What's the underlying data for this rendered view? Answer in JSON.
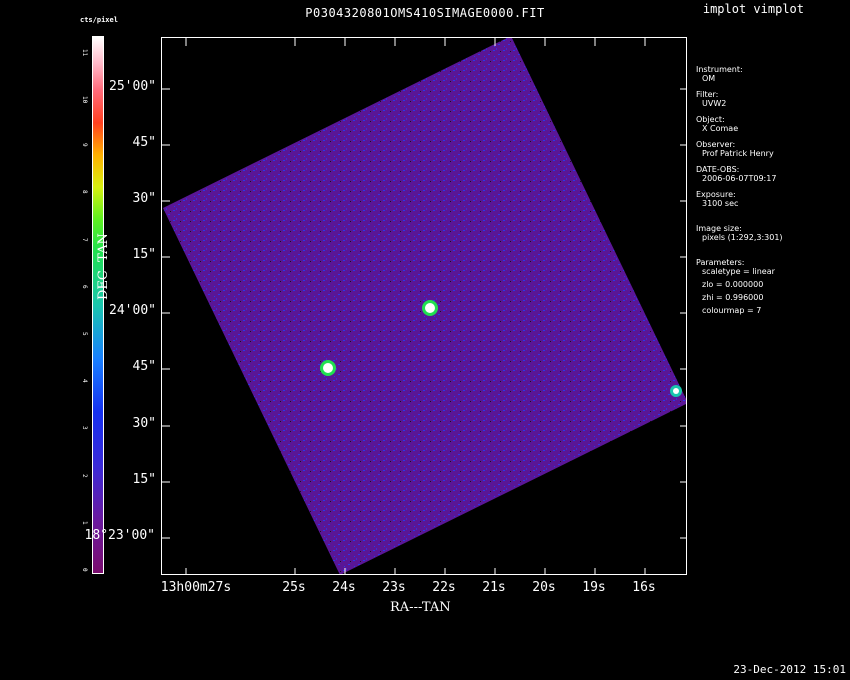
{
  "header": {
    "title": "P0304320801OMS410SIMAGE0000.FIT",
    "program": "implot vimplot",
    "timestamp": "23-Dec-2012 15:01"
  },
  "colorbar": {
    "label": "cts/pixel",
    "ticks": [
      "0",
      "1",
      "2",
      "3",
      "4",
      "5",
      "6",
      "7",
      "8",
      "9",
      "10",
      "11"
    ]
  },
  "axes": {
    "ylabel": "DEC--TAN",
    "xlabel": "RA---TAN",
    "yticks": [
      "25'00\"",
      "45\"",
      "30\"",
      "15\"",
      "24'00\"",
      "45\"",
      "30\"",
      "15\"",
      "18°23'00\""
    ],
    "xticks": [
      "13h00m27s",
      "25s",
      "24s",
      "23s",
      "22s",
      "21s",
      "20s",
      "19s",
      "16s"
    ]
  },
  "info": [
    {
      "key": "Instrument:",
      "value": "OM"
    },
    {
      "key": "Filter:",
      "value": "UVW2"
    },
    {
      "key": "Object:",
      "value": "X Comae"
    },
    {
      "key": "Observer:",
      "value": "Prof Patrick Henry"
    },
    {
      "key": "DATE-OBS:",
      "value": "2006-06-07T09:17"
    },
    {
      "key": "Exposure:",
      "value": "3100 sec"
    },
    {
      "key": "Image size:",
      "value": "pixels (1:292,3:301)"
    },
    {
      "key": "Parameters:",
      "value": "scaletype = linear"
    },
    {
      "key": "",
      "value": "zlo = 0.000000"
    },
    {
      "key": "",
      "value": "zhi = 0.996000"
    },
    {
      "key": "",
      "value": "colourmap = 7"
    }
  ]
}
